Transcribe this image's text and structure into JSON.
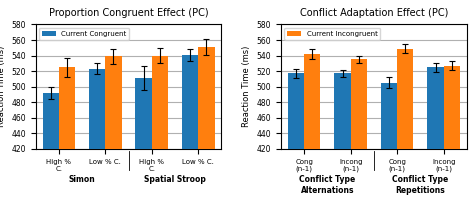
{
  "chart_data": [
    {
      "type": "bar",
      "title": "Proportion Congruent Effect (PC)",
      "ylabel": "Reaction Time (ms)",
      "categories": [
        "High % C.",
        "Low % C.",
        "High % C.",
        "Low % C."
      ],
      "group_labels": [
        "Simon",
        "Spatial Stroop"
      ],
      "series": [
        {
          "name": "Current Congruent",
          "values": [
            492,
            523,
            511,
            541
          ],
          "errors": [
            8,
            7,
            15,
            8
          ]
        },
        {
          "values": [
            525,
            539,
            540,
            551
          ],
          "errors": [
            12,
            10,
            10,
            10
          ]
        }
      ],
      "ylim": [
        420,
        580
      ],
      "yticks": [
        420,
        440,
        460,
        480,
        500,
        520,
        540,
        560,
        580
      ],
      "grid": true,
      "legend": "upper left"
    },
    {
      "type": "bar",
      "title": "Conflict Adaptation Effect (PC)",
      "ylabel": "Reaction Time (ms)",
      "categories": [
        "Cong (n-1)",
        "Incong (n-1)",
        "Cong (n-1)",
        "Incong (n-1)"
      ],
      "group_labels": [
        "Conflict Type Alternations",
        "Conflict Type Repetitions"
      ],
      "series": [
        {
          "values": [
            517,
            517,
            505,
            525
          ],
          "errors": [
            6,
            5,
            7,
            6
          ]
        },
        {
          "name": "Current Incongruent",
          "values": [
            542,
            535,
            549,
            527
          ],
          "errors": [
            6,
            5,
            6,
            6
          ]
        }
      ],
      "ylim": [
        420,
        580
      ],
      "yticks": [
        420,
        440,
        460,
        480,
        500,
        520,
        540,
        560,
        580
      ],
      "grid": true,
      "legend": "upper left"
    }
  ]
}
